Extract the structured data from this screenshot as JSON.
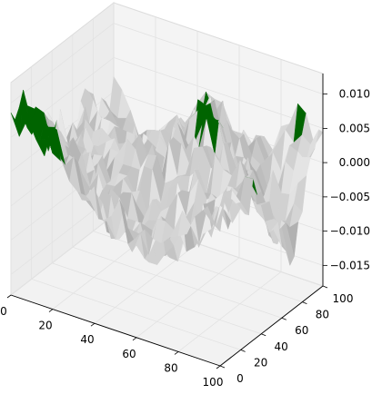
{
  "chart_data": {
    "type": "surface",
    "title": "",
    "xlabel": "",
    "ylabel": "",
    "zlabel": "",
    "x_ticks": [
      "0",
      "20",
      "40",
      "60",
      "80",
      "100"
    ],
    "y_ticks": [
      "0",
      "20",
      "40",
      "60",
      "80",
      "100"
    ],
    "z_ticks": [
      "0.010",
      "0.005",
      "0.000",
      "−0.005",
      "−0.010",
      "−0.015"
    ],
    "x_tick_values": [
      0,
      20,
      40,
      60,
      80,
      100
    ],
    "y_tick_values": [
      0,
      20,
      40,
      60,
      80,
      100
    ],
    "z_tick_values": [
      0.01,
      0.005,
      0.0,
      -0.005,
      -0.01,
      -0.015
    ],
    "xlim": [
      0,
      100
    ],
    "ylim": [
      0,
      100
    ],
    "zlim": [
      -0.018,
      0.013
    ],
    "grid": true,
    "grid_resolution": [
      100,
      100
    ],
    "surface_z_range": [
      -0.017,
      0.012
    ],
    "colors": {
      "low_surface": "#c8c8c8",
      "high_surface": "#006400",
      "shadow": "#000000",
      "pane": "#f2f2f2"
    }
  }
}
